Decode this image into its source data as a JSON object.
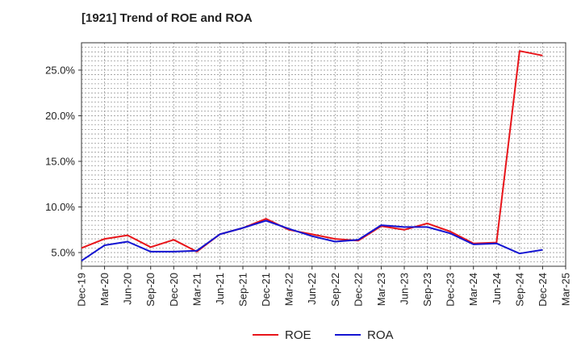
{
  "chart_data": {
    "type": "line",
    "title": "[1921]  Trend of ROE and ROA",
    "xlabel": "",
    "ylabel": "",
    "categories": [
      "Dec-19",
      "Mar-20",
      "Jun-20",
      "Sep-20",
      "Dec-20",
      "Mar-21",
      "Jun-21",
      "Sep-21",
      "Dec-21",
      "Mar-22",
      "Jun-22",
      "Sep-22",
      "Dec-22",
      "Mar-23",
      "Jun-23",
      "Sep-23",
      "Dec-23",
      "Mar-24",
      "Jun-24",
      "Sep-24",
      "Dec-24",
      "Mar-25"
    ],
    "ylim": [
      3.5,
      28.0
    ],
    "y_ticks": [
      5.0,
      10.0,
      15.0,
      20.0,
      25.0
    ],
    "y_tick_labels": [
      "5.0%",
      "10.0%",
      "15.0%",
      "20.0%",
      "25.0%"
    ],
    "grid": true,
    "legend_position": "bottom-center",
    "series": [
      {
        "name": "ROE",
        "color": "#e8141a",
        "values": [
          5.5,
          6.5,
          6.9,
          5.6,
          6.4,
          5.1,
          7.0,
          7.7,
          8.7,
          7.5,
          7.0,
          6.5,
          6.3,
          7.9,
          7.5,
          8.2,
          7.3,
          6.0,
          6.1,
          27.1,
          26.6,
          null
        ]
      },
      {
        "name": "ROA",
        "color": "#1414d2",
        "values": [
          4.1,
          5.8,
          6.2,
          5.1,
          5.1,
          5.2,
          7.0,
          7.7,
          8.5,
          7.6,
          6.8,
          6.2,
          6.4,
          8.0,
          7.8,
          7.8,
          7.1,
          5.9,
          6.0,
          4.9,
          5.3,
          null
        ]
      }
    ]
  }
}
